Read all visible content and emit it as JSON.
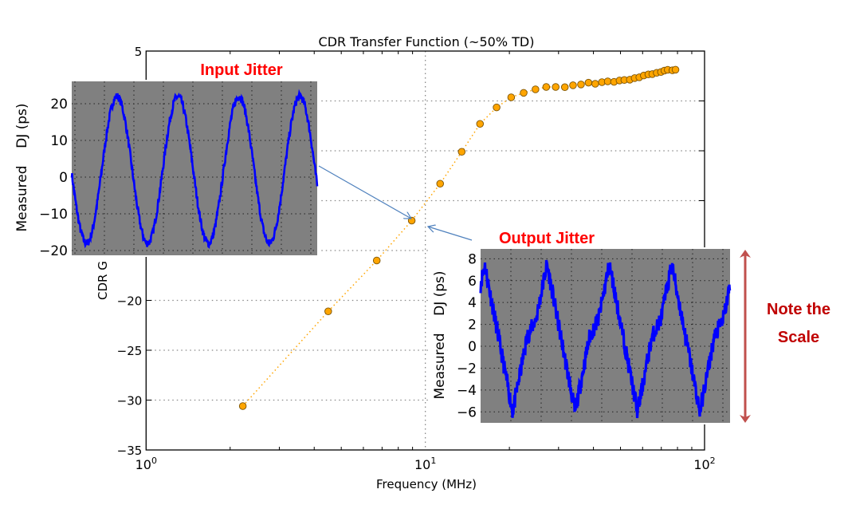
{
  "chart_data": [
    {
      "type": "scatter",
      "title": "CDR Transfer Function (~50% TD)",
      "xlabel": "Frequency (MHz)",
      "ylabel": "CDR G",
      "xscale": "log",
      "xlim": [
        1,
        100
      ],
      "ylim": [
        -35,
        5
      ],
      "x_tick_labels": [
        {
          "base": "10",
          "exp": "0"
        },
        {
          "base": "10",
          "exp": "1"
        },
        {
          "base": "10",
          "exp": "2"
        }
      ],
      "y_ticks": [
        5,
        0,
        -5,
        -10,
        -15,
        -20,
        -25,
        -30,
        -35
      ],
      "y_tick_labels": [
        "5",
        "",
        "",
        "",
        "",
        "−20",
        "−25",
        "−30",
        "−35"
      ],
      "grid": "dotted",
      "marker_color": "#ffa500",
      "line_style": "dotted",
      "x": [
        2.22,
        4.49,
        6.7,
        8.94,
        11.3,
        13.5,
        15.7,
        18.0,
        20.3,
        22.5,
        24.8,
        27.1,
        29.3,
        31.6,
        33.8,
        36.1,
        38.4,
        40.6,
        42.9,
        45.0,
        47.4,
        49.6,
        51.6,
        54.0,
        56.2,
        58.4,
        60.6,
        62.9,
        65.0,
        67.4,
        69.8,
        71.8,
        73.8,
        76.7,
        78.7
      ],
      "y": [
        -30.6,
        -21.1,
        -16.0,
        -12.0,
        -8.3,
        -5.1,
        -2.3,
        -0.65,
        0.36,
        0.81,
        1.16,
        1.4,
        1.4,
        1.38,
        1.57,
        1.65,
        1.83,
        1.72,
        1.88,
        1.96,
        1.91,
        2.05,
        2.1,
        2.13,
        2.29,
        2.37,
        2.55,
        2.66,
        2.69,
        2.82,
        2.9,
        3.04,
        3.12,
        3.07,
        3.13
      ]
    },
    {
      "type": "line",
      "title": "Input Jitter",
      "ylabel": "Measured    DJ (ps)",
      "ylim": [
        -21.3,
        26.1
      ],
      "y_ticks": [
        20,
        10,
        0,
        -10,
        -20
      ],
      "y_tick_labels": [
        "20",
        "10",
        "0",
        "−10",
        "−20"
      ],
      "series_color": "#0000ff",
      "background": "#808080",
      "waveform": "sine",
      "cycles_visible": 4,
      "min": -18,
      "max": 22
    },
    {
      "type": "line",
      "title": "Output Jitter",
      "ylabel": "Measured    DJ (ps)",
      "ylim": [
        -7.0,
        8.9
      ],
      "y_ticks": [
        8,
        6,
        4,
        2,
        0,
        -2,
        -4,
        -6
      ],
      "y_tick_labels": [
        "8",
        "6",
        "4",
        "2",
        "0",
        "−2",
        "−4",
        "−6"
      ],
      "series_color": "#0000ff",
      "background": "#808080",
      "waveform": "sawtooth",
      "cycles_visible": 4,
      "min": -6,
      "max": 8
    }
  ],
  "annotations": {
    "input_label": "Input Jitter",
    "output_label": "Output Jitter",
    "note_line1": "Note the",
    "note_line2": "Scale",
    "callout_color": "#ff0000",
    "note_color": "#c00000",
    "arrow_color": "#4f81bd",
    "scale_arrow_color": "#c0504d"
  }
}
